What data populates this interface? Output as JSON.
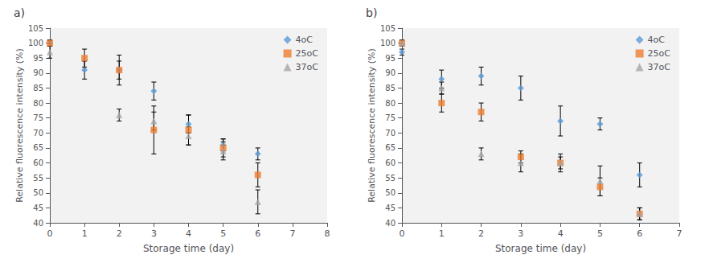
{
  "chart_data": [
    {
      "type": "scatter",
      "title": "a)",
      "xlabel": "Storage time (day)",
      "ylabel": "Relative fluorescence intensity (%)",
      "xlim": [
        0,
        8
      ],
      "ylim": [
        40,
        105
      ],
      "xticks": [
        0,
        1,
        2,
        3,
        4,
        5,
        6,
        7,
        8
      ],
      "yticks": [
        40,
        45,
        50,
        55,
        60,
        65,
        70,
        75,
        80,
        85,
        90,
        95,
        100
      ],
      "grid": false,
      "legend": "upper right",
      "series": [
        {
          "name": "4oC",
          "color": "#5B9BD5",
          "marker": "diamond",
          "x": [
            0,
            1,
            2,
            3,
            4,
            5,
            6
          ],
          "values": [
            100,
            91,
            91,
            84,
            73,
            66,
            63
          ],
          "yerr": [
            1,
            3,
            3,
            3,
            3,
            2,
            2
          ]
        },
        {
          "name": "25oC",
          "color": "#ED7D31",
          "marker": "square",
          "x": [
            0,
            1,
            2,
            3,
            4,
            5,
            6
          ],
          "values": [
            100,
            95,
            91,
            71,
            71,
            65,
            56
          ],
          "yerr": [
            1,
            3,
            5,
            8,
            5,
            3,
            4
          ]
        },
        {
          "name": "37oC",
          "color": "#A5A5A5",
          "marker": "triangle",
          "x": [
            0,
            2,
            3,
            4,
            5,
            6
          ],
          "values": [
            97,
            76,
            74,
            69,
            64,
            47
          ],
          "yerr": [
            2,
            2,
            3,
            3,
            3,
            4
          ]
        }
      ]
    },
    {
      "type": "scatter",
      "title": "b)",
      "xlabel": "Storage time (day)",
      "ylabel": "Relative fluorescence intensity (%)",
      "xlim": [
        0,
        7
      ],
      "ylim": [
        40,
        105
      ],
      "xticks": [
        0,
        1,
        2,
        3,
        4,
        5,
        6,
        7
      ],
      "yticks": [
        40,
        45,
        50,
        55,
        60,
        65,
        70,
        75,
        80,
        85,
        90,
        95,
        100
      ],
      "grid": false,
      "legend": "upper right",
      "series": [
        {
          "name": "4oC",
          "color": "#5B9BD5",
          "marker": "diamond",
          "x": [
            0,
            1,
            2,
            3,
            4,
            5,
            6
          ],
          "values": [
            97,
            88,
            89,
            85,
            74,
            73,
            56
          ],
          "yerr": [
            1,
            3,
            3,
            4,
            5,
            2,
            4
          ]
        },
        {
          "name": "25oC",
          "color": "#ED7D31",
          "marker": "square",
          "x": [
            0,
            1,
            2,
            3,
            4,
            5,
            6
          ],
          "values": [
            100,
            80,
            77,
            62,
            60,
            52,
            43
          ],
          "yerr": [
            1,
            3,
            3,
            2,
            2,
            3,
            2
          ]
        },
        {
          "name": "37oC",
          "color": "#A5A5A5",
          "marker": "triangle",
          "x": [
            0,
            1,
            2,
            3,
            4,
            5,
            6
          ],
          "values": [
            100,
            85,
            63,
            60,
            60,
            54,
            43
          ],
          "yerr": [
            1,
            2,
            2,
            3,
            3,
            5,
            2
          ]
        }
      ]
    }
  ]
}
